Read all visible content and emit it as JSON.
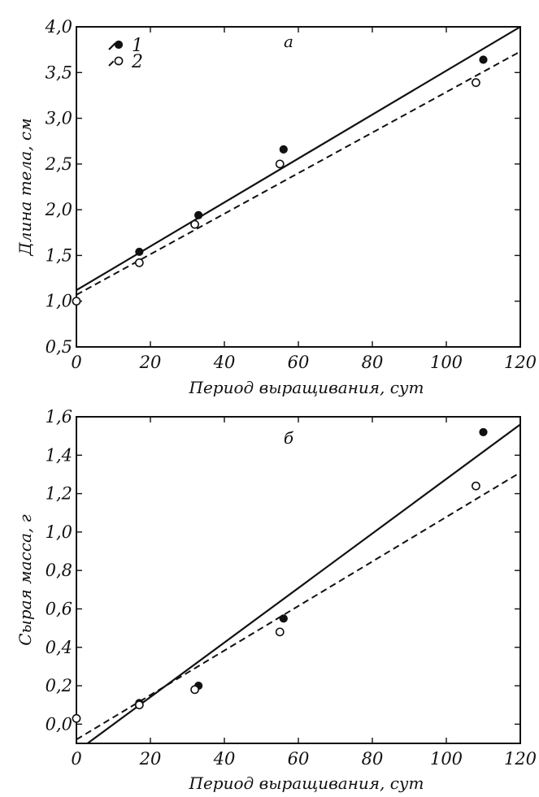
{
  "chart_data": [
    {
      "type": "scatter",
      "panel_label": "а",
      "xlabel": "Период выращивания, сут",
      "ylabel": "Длина тела, см",
      "xlim": [
        0,
        120
      ],
      "ylim": [
        0.5,
        4.0
      ],
      "x_ticks": [
        0,
        20,
        40,
        60,
        80,
        100,
        120
      ],
      "y_ticks": [
        0.5,
        1.0,
        1.5,
        2.0,
        2.5,
        3.0,
        3.5,
        4.0
      ],
      "x_tick_labels": [
        "0",
        "20",
        "40",
        "60",
        "80",
        "100",
        "120"
      ],
      "y_tick_labels": [
        "0,5",
        "1,0",
        "1,5",
        "2,0",
        "2,5",
        "3,0",
        "3,5",
        "4,0"
      ],
      "grid": false,
      "legend_position": "top-left",
      "series": [
        {
          "name": "1",
          "marker": "filled-circle",
          "line": "solid",
          "points": [
            [
              17,
              1.54
            ],
            [
              33,
              1.94
            ],
            [
              56,
              2.66
            ],
            [
              110,
              3.64
            ]
          ],
          "fit": [
            [
              0,
              1.12
            ],
            [
              120,
              4.0
            ]
          ]
        },
        {
          "name": "2",
          "marker": "open-circle",
          "line": "dashed",
          "points": [
            [
              0,
              1.0
            ],
            [
              17,
              1.42
            ],
            [
              32,
              1.84
            ],
            [
              55,
              2.5
            ],
            [
              108,
              3.39
            ]
          ],
          "fit": [
            [
              0,
              1.07
            ],
            [
              120,
              3.73
            ]
          ]
        }
      ]
    },
    {
      "type": "scatter",
      "panel_label": "б",
      "xlabel": "Период выращивания, сут",
      "ylabel": "Сырая масса, г",
      "xlim": [
        0,
        120
      ],
      "ylim": [
        -0.1,
        1.6
      ],
      "x_ticks": [
        0,
        20,
        40,
        60,
        80,
        100,
        120
      ],
      "y_ticks": [
        0.0,
        0.2,
        0.4,
        0.6,
        0.8,
        1.0,
        1.2,
        1.4,
        1.6
      ],
      "x_tick_labels": [
        "0",
        "20",
        "40",
        "60",
        "80",
        "100",
        "120"
      ],
      "y_tick_labels": [
        "0,0",
        "0,2",
        "0,4",
        "0,6",
        "0,8",
        "1,0",
        "1,2",
        "1,4",
        "1,6"
      ],
      "grid": false,
      "series": [
        {
          "name": "1",
          "marker": "filled-circle",
          "line": "solid",
          "points": [
            [
              17,
              0.11
            ],
            [
              33,
              0.2
            ],
            [
              56,
              0.55
            ],
            [
              110,
              1.52
            ]
          ],
          "fit": [
            [
              3,
              -0.1
            ],
            [
              120,
              1.56
            ]
          ]
        },
        {
          "name": "2",
          "marker": "open-circle",
          "line": "dashed",
          "points": [
            [
              0,
              0.03
            ],
            [
              17,
              0.1
            ],
            [
              32,
              0.18
            ],
            [
              55,
              0.48
            ],
            [
              108,
              1.24
            ]
          ],
          "fit": [
            [
              0,
              -0.08
            ],
            [
              120,
              1.31
            ]
          ]
        }
      ]
    }
  ]
}
